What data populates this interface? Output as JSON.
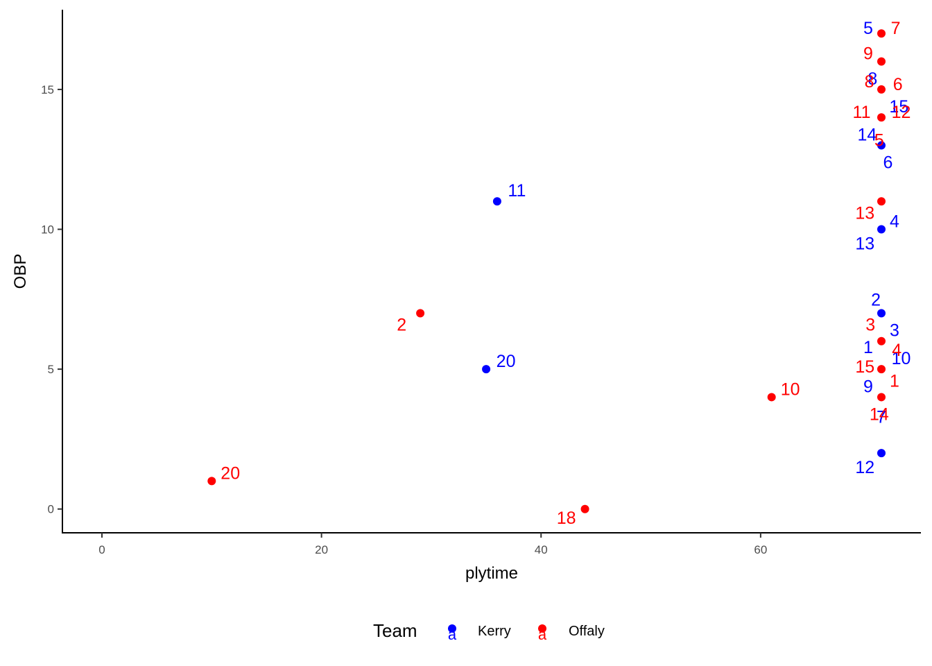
{
  "chart_data": {
    "type": "scatter",
    "title": "",
    "xlabel": "plytime",
    "ylabel": "OBP",
    "xlim": [
      -3.6,
      74.6
    ],
    "ylim": [
      -0.85,
      17.85
    ],
    "x_ticks": [
      0,
      20,
      40,
      60
    ],
    "y_ticks": [
      0,
      5,
      10,
      15
    ],
    "x_tick_labels": [
      "0",
      "20",
      "40",
      "60"
    ],
    "y_tick_labels": [
      "0",
      "5",
      "10",
      "15"
    ],
    "grid": false,
    "legend": {
      "title": "Team",
      "position": "bottom",
      "key_glyph": "a",
      "entries": [
        {
          "name": "Kerry",
          "color": "#0000ff"
        },
        {
          "name": "Offaly",
          "color": "#ff0000"
        }
      ]
    },
    "series": [
      {
        "name": "Kerry",
        "color": "#0000ff",
        "points": [
          {
            "x": 71,
            "y": 2,
            "label": "12",
            "lx": 69.5,
            "ly": 1.5
          },
          {
            "x": 71,
            "y": 7,
            "label": "2",
            "lx": 70.5,
            "ly": 7.5
          },
          {
            "x": 71,
            "y": 10,
            "label": "4",
            "lx": 72.2,
            "ly": 10.3
          },
          {
            "x": 71,
            "y": 13,
            "label": "6",
            "lx": 71.6,
            "ly": 12.4
          },
          {
            "x": 36,
            "y": 11,
            "label": "11",
            "lx": 37.8,
            "ly": 11.4
          },
          {
            "x": 35,
            "y": 5,
            "label": "20",
            "lx": 36.8,
            "ly": 5.3
          }
        ],
        "labels": [
          {
            "text": "5",
            "x": 69.8,
            "y": 17.2
          },
          {
            "text": "8",
            "x": 70.2,
            "y": 15.4
          },
          {
            "text": "15",
            "x": 72.6,
            "y": 14.4
          },
          {
            "text": "14",
            "x": 69.7,
            "y": 13.4
          },
          {
            "text": "13",
            "x": 69.5,
            "y": 9.5
          },
          {
            "text": "3",
            "x": 72.2,
            "y": 6.4
          },
          {
            "text": "1",
            "x": 69.8,
            "y": 5.8
          },
          {
            "text": "10",
            "x": 72.8,
            "y": 5.4
          },
          {
            "text": "9",
            "x": 69.8,
            "y": 4.4
          },
          {
            "text": "7",
            "x": 71.0,
            "y": 3.3
          }
        ]
      },
      {
        "name": "Offaly",
        "color": "#ff0000",
        "points": [
          {
            "x": 71,
            "y": 17,
            "label": "7",
            "lx": 72.3,
            "ly": 17.2
          },
          {
            "x": 71,
            "y": 16,
            "label": "9",
            "lx": 69.8,
            "ly": 16.3
          },
          {
            "x": 71,
            "y": 15,
            "label": "6",
            "lx": 72.5,
            "ly": 15.2
          },
          {
            "x": 71,
            "y": 14,
            "label": "12",
            "lx": 72.8,
            "ly": 14.2
          },
          {
            "x": 71,
            "y": 11,
            "label": "13",
            "lx": 69.5,
            "ly": 10.6
          },
          {
            "x": 71,
            "y": 6,
            "label": "3",
            "lx": 70.0,
            "ly": 6.6
          },
          {
            "x": 71,
            "y": 5,
            "label": "15",
            "lx": 69.5,
            "ly": 5.1
          },
          {
            "x": 71,
            "y": 4,
            "label": "1",
            "lx": 72.2,
            "ly": 4.6
          },
          {
            "x": 61,
            "y": 4,
            "label": "10",
            "lx": 62.7,
            "ly": 4.3
          },
          {
            "x": 29,
            "y": 7,
            "label": "2",
            "lx": 27.3,
            "ly": 6.6
          },
          {
            "x": 10,
            "y": 1,
            "label": "20",
            "lx": 11.7,
            "ly": 1.3
          },
          {
            "x": 44,
            "y": 0,
            "label": "18",
            "lx": 42.3,
            "ly": -0.3
          }
        ],
        "labels": [
          {
            "text": "8",
            "x": 69.9,
            "y": 15.3
          },
          {
            "text": "11",
            "x": 69.2,
            "y": 14.2
          },
          {
            "text": "5",
            "x": 70.8,
            "y": 13.2
          },
          {
            "text": "4",
            "x": 72.4,
            "y": 5.7
          },
          {
            "text": "14",
            "x": 70.8,
            "y": 3.4
          }
        ]
      }
    ]
  }
}
